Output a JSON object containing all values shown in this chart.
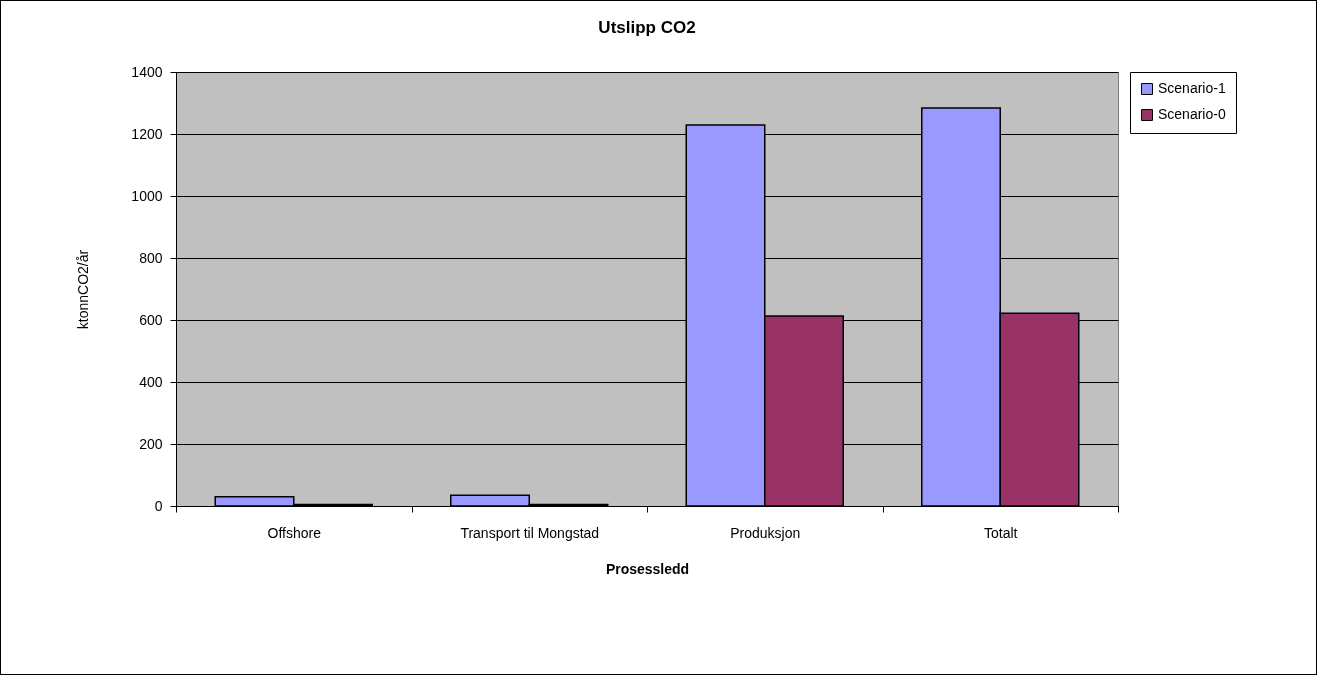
{
  "chart_data": {
    "type": "bar",
    "title": "Utslipp CO2",
    "xlabel": "Prosessledd",
    "ylabel": "ktonnCO2/år",
    "categories": [
      "Offshore",
      "Transport til Mongstad",
      "Produksjon",
      "Totalt"
    ],
    "series": [
      {
        "name": "Scenario-1",
        "color": "#9999ff",
        "values": [
          30,
          35,
          1229,
          1284
        ]
      },
      {
        "name": "Scenario-0",
        "color": "#993366",
        "values": [
          5,
          5,
          613,
          622
        ]
      }
    ],
    "ylim": [
      0,
      1400
    ],
    "yticks": [
      0,
      200,
      400,
      600,
      800,
      1000,
      1200,
      1400
    ],
    "grid": "y",
    "legend": "right"
  }
}
